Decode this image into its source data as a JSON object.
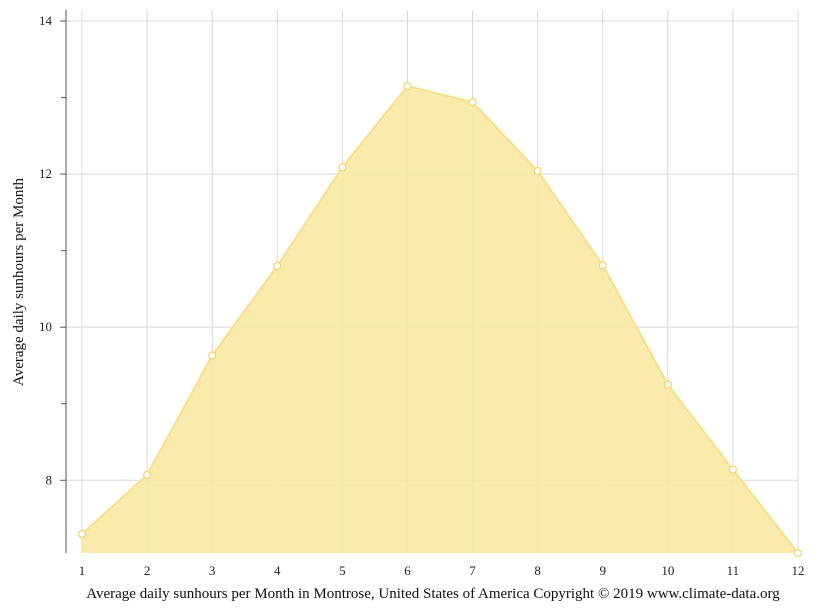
{
  "chart_data": {
    "type": "area",
    "x": [
      1,
      2,
      3,
      4,
      5,
      6,
      7,
      8,
      9,
      10,
      11,
      12
    ],
    "values": [
      7.3,
      8.07,
      9.63,
      10.8,
      12.09,
      13.15,
      12.94,
      12.04,
      10.81,
      9.25,
      8.14,
      7.05
    ],
    "xlim": [
      1,
      12
    ],
    "ylim": [
      7.05,
      14.15
    ],
    "y_ticks": [
      8,
      10,
      12,
      14
    ],
    "x_ticks": [
      1,
      2,
      3,
      4,
      5,
      6,
      7,
      8,
      9,
      10,
      11,
      12
    ],
    "ylabel": "Average daily sunhours per Month",
    "xlabel": "",
    "grid": true,
    "fill_color": "#f9e9a3",
    "line_color": "#f7e08a",
    "marker_fill": "#ffffff",
    "marker_stroke": "#f0d36a",
    "grid_color": "#d8d8d8",
    "axis_color": "#555555"
  },
  "caption": "Average daily sunhours per Month in Montrose, United States of America Copyright © 2019 www.climate-data.org"
}
